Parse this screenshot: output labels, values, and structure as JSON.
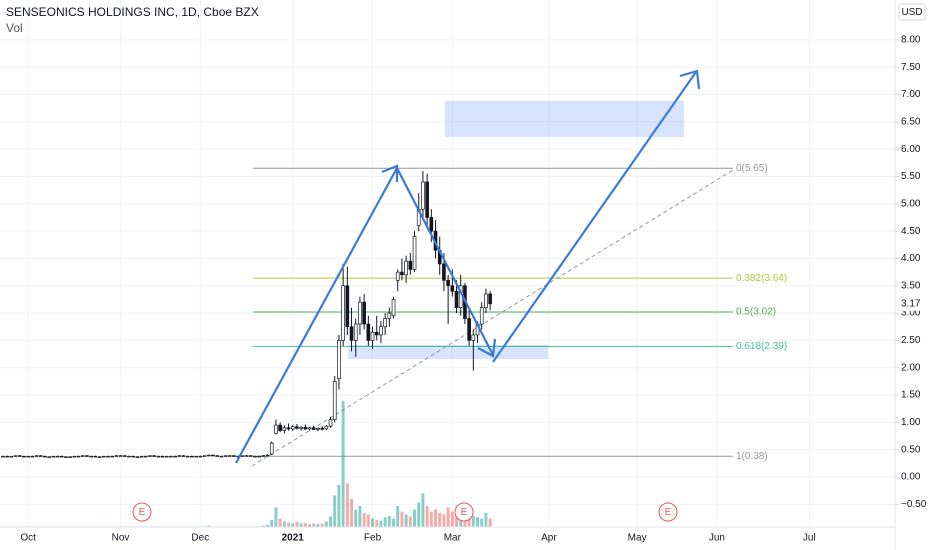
{
  "chart_data": {
    "type": "candlestick",
    "title": "SENSEONICS HOLDINGS INC, 1D, Cboe BZX",
    "subtitle": "Vol",
    "currency": "USD",
    "up_color": "#ffffff",
    "down_color": "#131722",
    "volume_up_color": "rgba(38,166,154,0.55)",
    "volume_down_color": "rgba(239,83,80,0.5)",
    "xlim": [
      -6.7,
      206.4
    ],
    "ylim": [
      -0.97,
      8.73
    ],
    "vollim": [
      0,
      200
    ],
    "xticks": [
      {
        "value": 0,
        "label": "Oct"
      },
      {
        "value": 22,
        "label": "Nov"
      },
      {
        "value": 41,
        "label": "Dec"
      },
      {
        "value": 63,
        "label": "2021"
      },
      {
        "value": 82,
        "label": "Feb"
      },
      {
        "value": 101,
        "label": "Mar"
      },
      {
        "value": 124,
        "label": "Apr"
      },
      {
        "value": 145,
        "label": "May"
      },
      {
        "value": 164,
        "label": "Jun"
      },
      {
        "value": 186,
        "label": "Jul"
      }
    ],
    "yticks": [
      {
        "value": -0.5,
        "label": "−0.50"
      },
      {
        "value": 0,
        "label": "0.00"
      },
      {
        "value": 0.5,
        "label": "0.50"
      },
      {
        "value": 1,
        "label": "1.00"
      },
      {
        "value": 1.5,
        "label": "1.50"
      },
      {
        "value": 2,
        "label": "2.00"
      },
      {
        "value": 2.5,
        "label": "2.50"
      },
      {
        "value": 3,
        "label": "3.00"
      },
      {
        "value": 3.5,
        "label": "3.50"
      },
      {
        "value": 4,
        "label": "4.00"
      },
      {
        "value": 4.5,
        "label": "4.50"
      },
      {
        "value": 5,
        "label": "5.00"
      },
      {
        "value": 5.5,
        "label": "5.50"
      },
      {
        "value": 6,
        "label": "6.00"
      },
      {
        "value": 6.5,
        "label": "6.50"
      },
      {
        "value": 7,
        "label": "7.00"
      },
      {
        "value": 7.5,
        "label": "7.50"
      },
      {
        "value": 8,
        "label": "8.00"
      }
    ],
    "last_price": 3.17,
    "fib_levels": [
      {
        "label": "0(5.65)",
        "value": 5.65,
        "color": "#9598a1"
      },
      {
        "label": "0.382(3.64)",
        "value": 3.64,
        "color": "#b2c93c"
      },
      {
        "label": "0.5(3.02)",
        "value": 3.02,
        "color": "#4caf50"
      },
      {
        "label": "0.618(2.39)",
        "value": 2.39,
        "color": "#3ec38e"
      },
      {
        "label": "1(0.38)",
        "value": 0.38,
        "color": "#9598a1"
      }
    ],
    "events": [
      "E",
      "E",
      "E"
    ],
    "x": [
      -6,
      -5,
      -4,
      -3,
      -2,
      -1,
      0,
      1,
      2,
      3,
      4,
      5,
      6,
      7,
      8,
      9,
      10,
      11,
      12,
      13,
      14,
      15,
      16,
      17,
      18,
      19,
      20,
      21,
      22,
      23,
      24,
      25,
      26,
      27,
      28,
      29,
      30,
      31,
      32,
      33,
      34,
      35,
      36,
      37,
      38,
      39,
      40,
      41,
      42,
      43,
      44,
      45,
      46,
      47,
      48,
      49,
      50,
      51,
      52,
      53,
      54,
      55,
      56,
      57,
      58,
      59,
      60,
      61,
      62,
      63,
      64,
      65,
      66,
      67,
      68,
      69,
      70,
      71,
      72,
      73,
      74,
      75,
      76,
      77,
      78,
      79,
      80,
      81,
      82,
      83,
      84,
      85,
      86,
      87,
      88,
      89,
      90,
      91,
      92,
      93,
      94,
      95,
      96,
      97,
      98,
      99,
      100,
      101,
      102,
      103,
      104,
      105,
      106,
      107,
      108,
      109,
      110
    ],
    "ohlc": [
      [
        0.38,
        0.39,
        0.37,
        0.38
      ],
      [
        0.38,
        0.39,
        0.37,
        0.37
      ],
      [
        0.37,
        0.38,
        0.36,
        0.38
      ],
      [
        0.38,
        0.39,
        0.37,
        0.39
      ],
      [
        0.39,
        0.4,
        0.38,
        0.38
      ],
      [
        0.38,
        0.39,
        0.37,
        0.37
      ],
      [
        0.37,
        0.38,
        0.36,
        0.38
      ],
      [
        0.38,
        0.39,
        0.37,
        0.38
      ],
      [
        0.38,
        0.4,
        0.37,
        0.39
      ],
      [
        0.39,
        0.4,
        0.38,
        0.38
      ],
      [
        0.38,
        0.39,
        0.37,
        0.37
      ],
      [
        0.37,
        0.38,
        0.36,
        0.37
      ],
      [
        0.37,
        0.38,
        0.36,
        0.38
      ],
      [
        0.38,
        0.39,
        0.37,
        0.38
      ],
      [
        0.38,
        0.39,
        0.37,
        0.37
      ],
      [
        0.37,
        0.38,
        0.36,
        0.36
      ],
      [
        0.36,
        0.38,
        0.35,
        0.37
      ],
      [
        0.37,
        0.38,
        0.36,
        0.38
      ],
      [
        0.38,
        0.39,
        0.37,
        0.38
      ],
      [
        0.38,
        0.39,
        0.37,
        0.39
      ],
      [
        0.39,
        0.4,
        0.38,
        0.38
      ],
      [
        0.38,
        0.39,
        0.37,
        0.38
      ],
      [
        0.38,
        0.39,
        0.37,
        0.37
      ],
      [
        0.37,
        0.38,
        0.36,
        0.37
      ],
      [
        0.37,
        0.38,
        0.36,
        0.38
      ],
      [
        0.38,
        0.39,
        0.37,
        0.38
      ],
      [
        0.38,
        0.39,
        0.37,
        0.38
      ],
      [
        0.38,
        0.4,
        0.37,
        0.39
      ],
      [
        0.39,
        0.4,
        0.38,
        0.39
      ],
      [
        0.39,
        0.4,
        0.38,
        0.38
      ],
      [
        0.38,
        0.39,
        0.37,
        0.38
      ],
      [
        0.38,
        0.39,
        0.37,
        0.37
      ],
      [
        0.37,
        0.38,
        0.36,
        0.37
      ],
      [
        0.37,
        0.38,
        0.36,
        0.38
      ],
      [
        0.38,
        0.39,
        0.37,
        0.38
      ],
      [
        0.38,
        0.39,
        0.37,
        0.39
      ],
      [
        0.39,
        0.4,
        0.38,
        0.38
      ],
      [
        0.38,
        0.39,
        0.37,
        0.38
      ],
      [
        0.38,
        0.39,
        0.37,
        0.37
      ],
      [
        0.37,
        0.38,
        0.36,
        0.38
      ],
      [
        0.38,
        0.39,
        0.37,
        0.38
      ],
      [
        0.38,
        0.39,
        0.37,
        0.38
      ],
      [
        0.38,
        0.4,
        0.37,
        0.39
      ],
      [
        0.39,
        0.4,
        0.38,
        0.38
      ],
      [
        0.38,
        0.39,
        0.37,
        0.38
      ],
      [
        0.38,
        0.39,
        0.37,
        0.37
      ],
      [
        0.37,
        0.38,
        0.36,
        0.38
      ],
      [
        0.38,
        0.39,
        0.37,
        0.38
      ],
      [
        0.38,
        0.39,
        0.37,
        0.39
      ],
      [
        0.39,
        0.41,
        0.38,
        0.4
      ],
      [
        0.4,
        0.41,
        0.38,
        0.39
      ],
      [
        0.39,
        0.4,
        0.38,
        0.38
      ],
      [
        0.38,
        0.39,
        0.37,
        0.38
      ],
      [
        0.38,
        0.39,
        0.37,
        0.39
      ],
      [
        0.39,
        0.4,
        0.38,
        0.39
      ],
      [
        0.39,
        0.4,
        0.38,
        0.38
      ],
      [
        0.38,
        0.39,
        0.37,
        0.38
      ],
      [
        0.38,
        0.39,
        0.37,
        0.39
      ],
      [
        0.39,
        0.4,
        0.38,
        0.39
      ],
      [
        0.39,
        0.4,
        0.38,
        0.38
      ],
      [
        0.38,
        0.39,
        0.37,
        0.38
      ],
      [
        0.38,
        0.39,
        0.37,
        0.38
      ],
      [
        0.38,
        0.4,
        0.37,
        0.39
      ],
      [
        0.39,
        0.42,
        0.38,
        0.4
      ],
      [
        0.42,
        0.65,
        0.4,
        0.62
      ],
      [
        0.8,
        1.05,
        0.78,
        0.95
      ],
      [
        0.95,
        1.0,
        0.82,
        0.85
      ],
      [
        0.85,
        0.95,
        0.8,
        0.9
      ],
      [
        0.9,
        0.98,
        0.85,
        0.88
      ],
      [
        0.88,
        0.95,
        0.84,
        0.92
      ],
      [
        0.92,
        0.97,
        0.87,
        0.89
      ],
      [
        0.89,
        0.93,
        0.85,
        0.91
      ],
      [
        0.91,
        0.96,
        0.86,
        0.88
      ],
      [
        0.88,
        0.92,
        0.85,
        0.9
      ],
      [
        0.9,
        0.94,
        0.86,
        0.87
      ],
      [
        0.87,
        0.91,
        0.84,
        0.89
      ],
      [
        0.89,
        0.93,
        0.85,
        0.88
      ],
      [
        0.88,
        0.95,
        0.86,
        0.93
      ],
      [
        0.93,
        1.1,
        0.9,
        1.05
      ],
      [
        1.05,
        1.85,
        1.0,
        1.75
      ],
      [
        1.8,
        2.6,
        1.6,
        2.5
      ],
      [
        2.5,
        3.9,
        2.4,
        3.5
      ],
      [
        3.5,
        3.85,
        2.6,
        2.75
      ],
      [
        2.75,
        3.1,
        2.3,
        2.5
      ],
      [
        2.5,
        2.9,
        2.2,
        2.8
      ],
      [
        2.8,
        3.3,
        2.6,
        3.2
      ],
      [
        3.2,
        3.35,
        2.7,
        2.8
      ],
      [
        2.8,
        2.95,
        2.4,
        2.5
      ],
      [
        2.5,
        2.75,
        2.35,
        2.65
      ],
      [
        2.65,
        2.95,
        2.5,
        2.6
      ],
      [
        2.6,
        2.85,
        2.45,
        2.75
      ],
      [
        2.75,
        3.0,
        2.6,
        2.9
      ],
      [
        2.9,
        3.1,
        2.75,
        3.0
      ],
      [
        2.95,
        3.3,
        2.9,
        3.25
      ],
      [
        3.6,
        3.8,
        3.4,
        3.75
      ],
      [
        3.75,
        4.0,
        3.6,
        3.7
      ],
      [
        3.7,
        4.05,
        3.55,
        3.95
      ],
      [
        3.95,
        4.1,
        3.7,
        3.8
      ],
      [
        3.8,
        4.5,
        3.75,
        4.4
      ],
      [
        4.6,
        5.2,
        4.5,
        4.9
      ],
      [
        4.9,
        5.6,
        4.7,
        5.4
      ],
      [
        5.4,
        5.55,
        4.6,
        4.75
      ],
      [
        4.75,
        4.9,
        4.3,
        4.5
      ],
      [
        4.5,
        4.7,
        4.0,
        4.15
      ],
      [
        4.15,
        4.4,
        3.7,
        3.9
      ],
      [
        3.9,
        4.1,
        3.4,
        3.6
      ],
      [
        3.6,
        3.7,
        2.8,
        3.5
      ],
      [
        3.5,
        3.8,
        3.3,
        3.4
      ],
      [
        3.4,
        3.6,
        3.0,
        3.1
      ],
      [
        3.1,
        3.7,
        2.95,
        3.5
      ],
      [
        3.5,
        3.55,
        2.8,
        2.9
      ],
      [
        2.9,
        3.05,
        2.4,
        2.5
      ],
      [
        2.5,
        2.7,
        1.95,
        2.6
      ],
      [
        2.6,
        2.85,
        2.45,
        2.8
      ],
      [
        2.8,
        3.2,
        2.7,
        3.1
      ],
      [
        3.1,
        3.45,
        3.0,
        3.35
      ],
      [
        3.35,
        3.4,
        3.05,
        3.17
      ]
    ],
    "volume": [
      1,
      1,
      1,
      1,
      1,
      1,
      1,
      1,
      1,
      1,
      1,
      1,
      1,
      1,
      1,
      1,
      1,
      1,
      1,
      1,
      1,
      1,
      1,
      1,
      1,
      1,
      1,
      1,
      1,
      1,
      1,
      1,
      1,
      1,
      1,
      1,
      1,
      1,
      1,
      1,
      1,
      1,
      1,
      1,
      1,
      1,
      1,
      1,
      1,
      2,
      1,
      1,
      1,
      1,
      1,
      1,
      1,
      1,
      1,
      1,
      1,
      1,
      2,
      3,
      10,
      28,
      12,
      8,
      6,
      5,
      7,
      5,
      6,
      4,
      5,
      4,
      5,
      8,
      15,
      45,
      60,
      180,
      62,
      40,
      25,
      30,
      20,
      18,
      12,
      10,
      9,
      14,
      16,
      12,
      30,
      22,
      18,
      15,
      25,
      35,
      48,
      30,
      22,
      25,
      20,
      18,
      28,
      22,
      15,
      20,
      24,
      30,
      16,
      14,
      12,
      20,
      12
    ]
  }
}
